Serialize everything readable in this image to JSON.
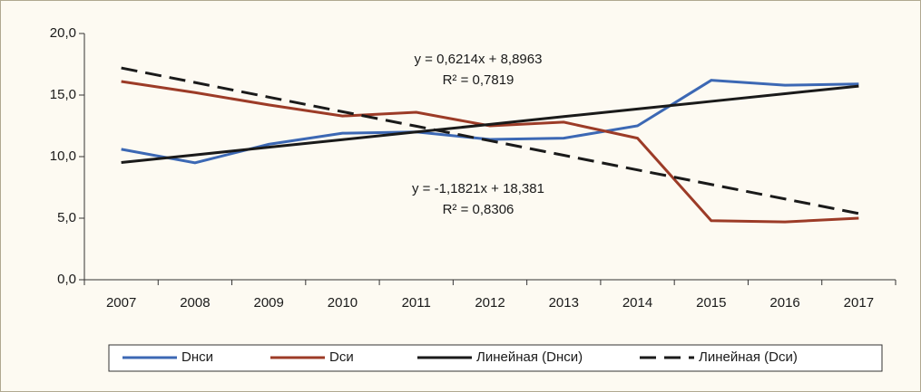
{
  "chart_data": {
    "type": "line",
    "categories": [
      "2007",
      "2008",
      "2009",
      "2010",
      "2011",
      "2012",
      "2013",
      "2014",
      "2015",
      "2016",
      "2017"
    ],
    "series": [
      {
        "name": "Dнси",
        "color": "#3c68b4",
        "dash": false,
        "values": [
          10.6,
          9.5,
          11.0,
          11.9,
          12.0,
          11.4,
          11.5,
          12.5,
          16.2,
          15.8,
          15.9
        ]
      },
      {
        "name": "Dси",
        "color": "#9c3b27",
        "dash": false,
        "values": [
          16.1,
          15.2,
          14.2,
          13.3,
          13.6,
          12.5,
          12.8,
          11.5,
          4.8,
          4.7,
          5.0
        ]
      },
      {
        "name": "Линейная (Dнси)",
        "color": "#1a1a1a",
        "dash": false,
        "values": [
          9.52,
          10.14,
          10.76,
          11.38,
          12.0,
          12.62,
          13.25,
          13.87,
          14.49,
          15.11,
          15.73
        ]
      },
      {
        "name": "Линейная (Dси)",
        "color": "#1a1a1a",
        "dash": true,
        "values": [
          17.2,
          16.02,
          14.83,
          13.65,
          12.47,
          11.29,
          10.11,
          8.92,
          7.74,
          6.56,
          5.38
        ]
      }
    ],
    "annotations": [
      "y = 0,6214x + 8,8963",
      "R² = 0,7819",
      "y = -1,1821x + 18,381",
      "R² = 0,8306"
    ],
    "ylim": [
      0,
      20
    ],
    "yticks": [
      {
        "value": 0,
        "label": "0,0"
      },
      {
        "value": 5,
        "label": "5,0"
      },
      {
        "value": 10,
        "label": "10,0"
      },
      {
        "value": 15,
        "label": "15,0"
      },
      {
        "value": 20,
        "label": "20,0"
      }
    ],
    "legend": "bottom"
  }
}
